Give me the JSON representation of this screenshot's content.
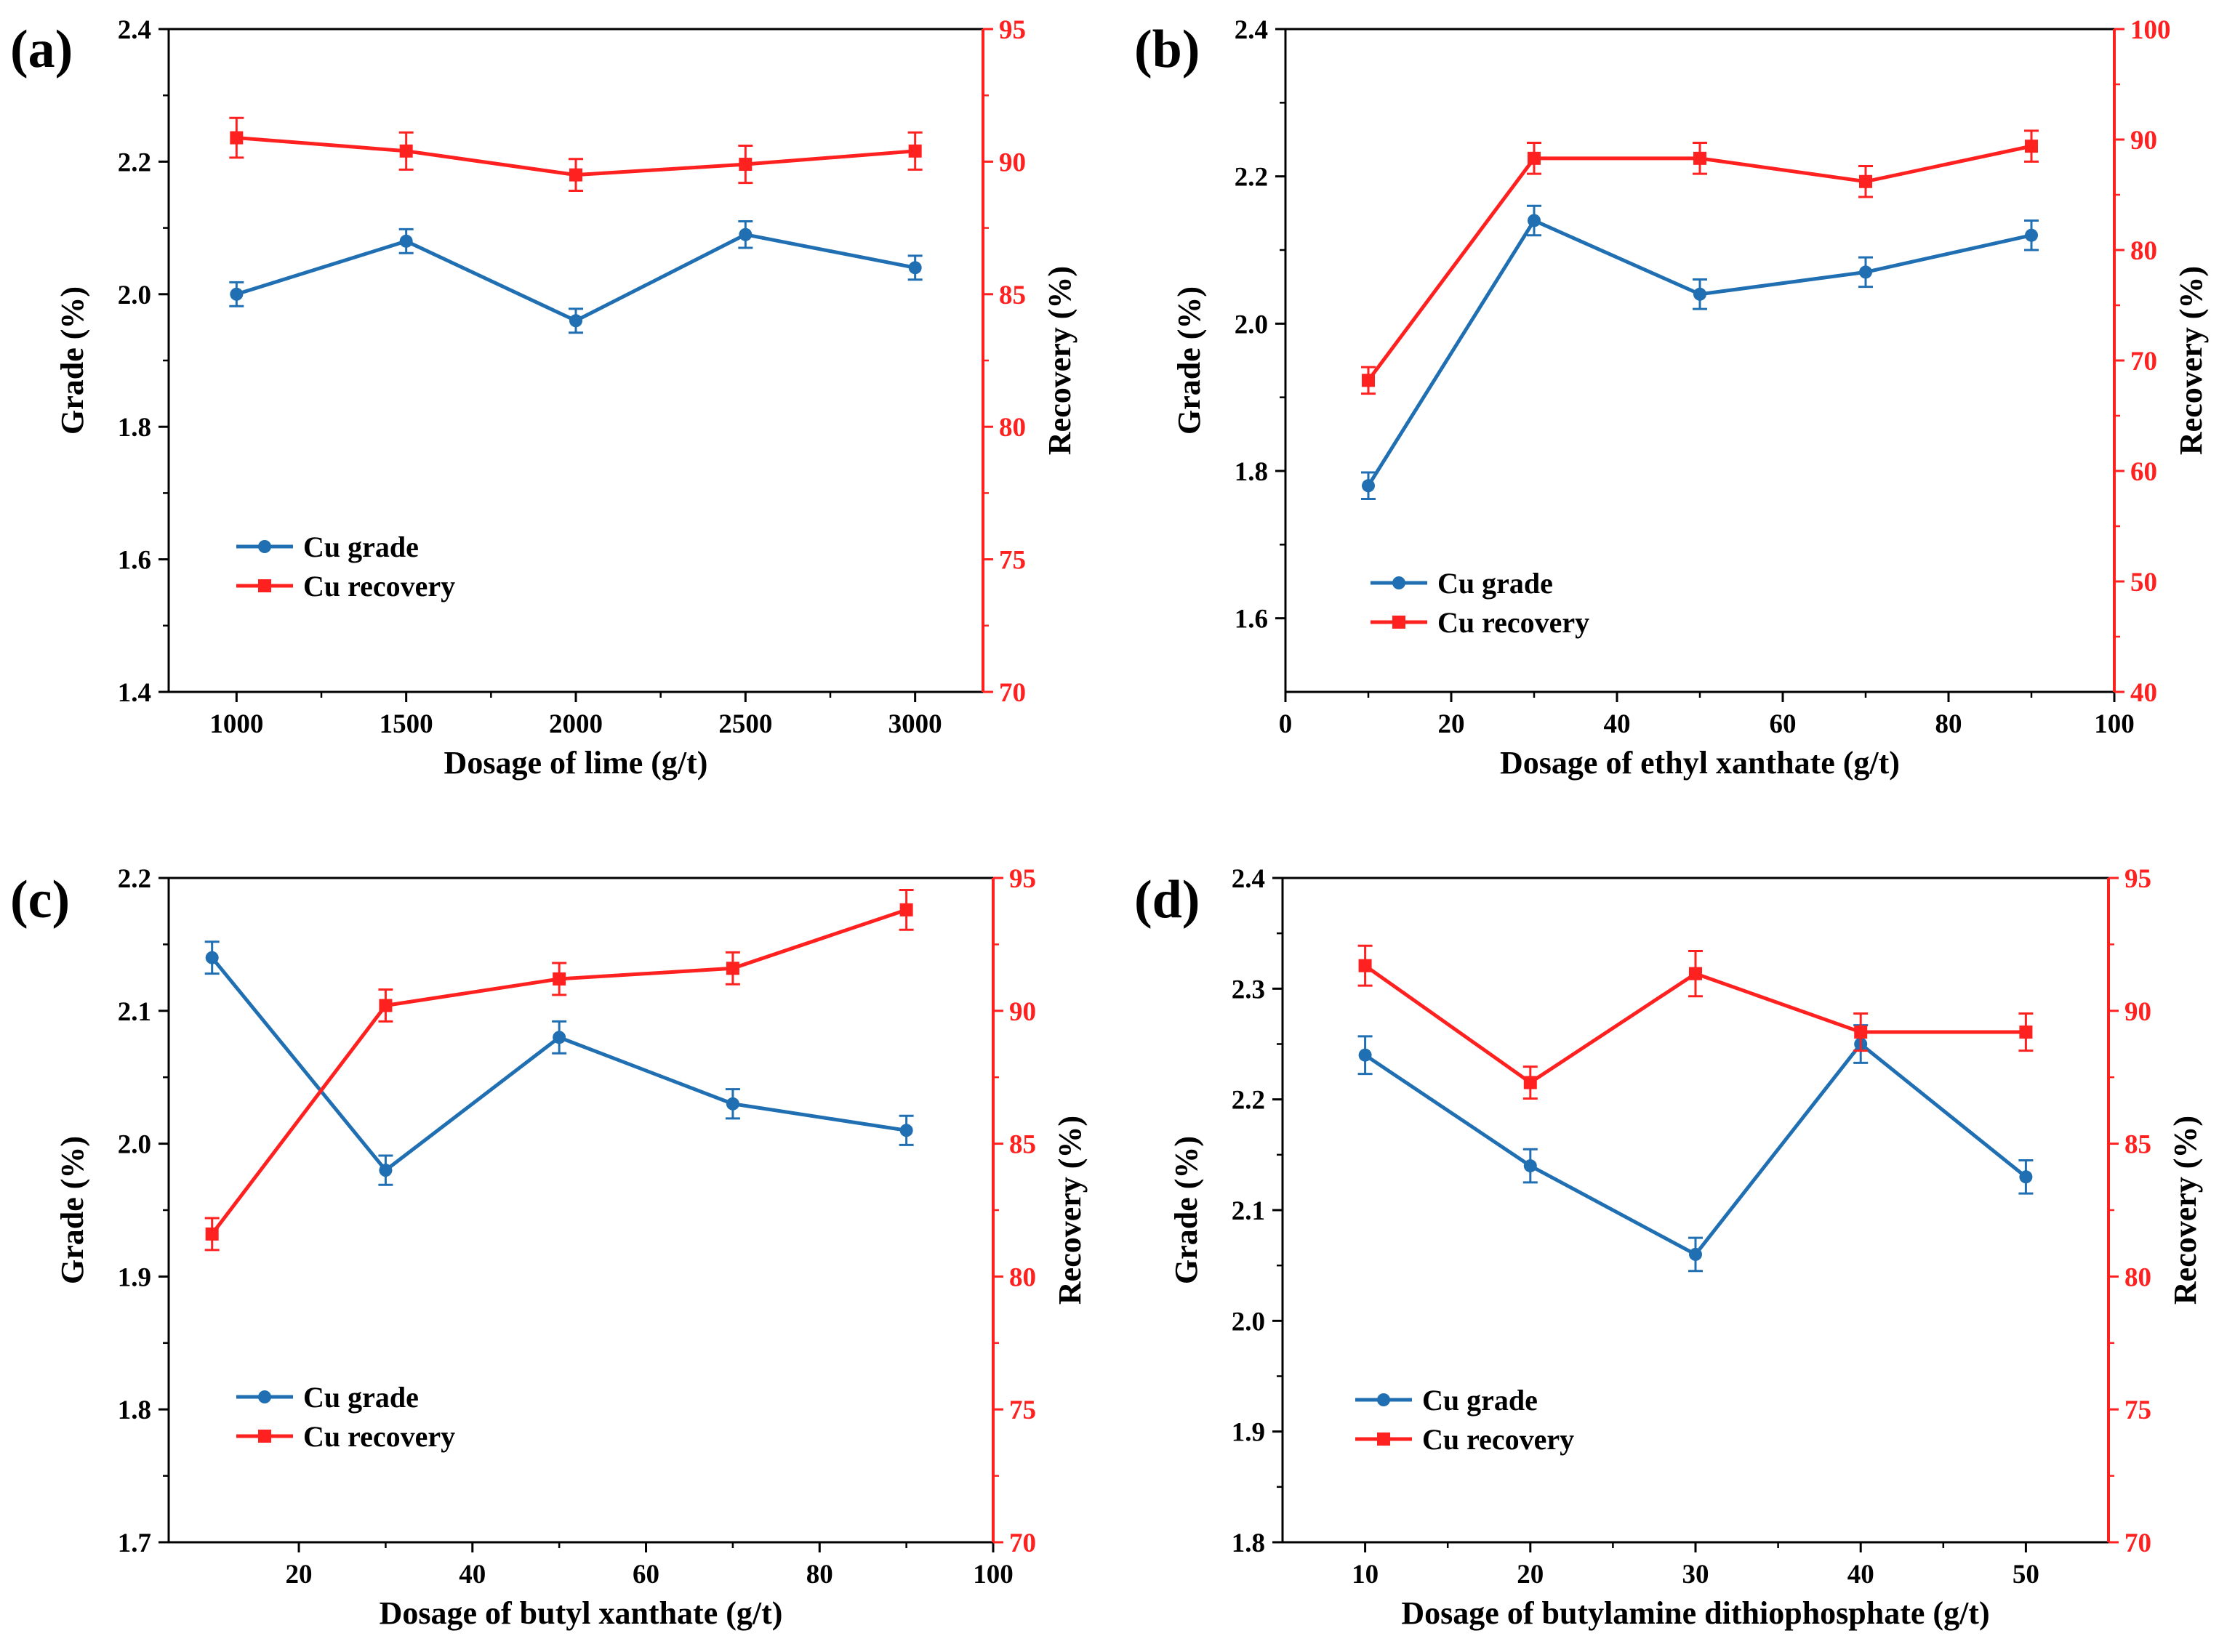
{
  "colors": {
    "grade": "#1f6fb2",
    "recovery": "#ff2020",
    "axis": "#000000"
  },
  "legend": {
    "grade_label": "Cu grade",
    "recovery_label": "Cu recovery"
  },
  "chart_data": [
    {
      "type": "line",
      "panel_label": "(a)",
      "xlabel": "Dosage of lime (g/t)",
      "ylabel_left": "Grade (%)",
      "ylabel_right": "Recovery (%)",
      "xlim": [
        800,
        3200
      ],
      "xticks": [
        1000,
        1500,
        2000,
        2500,
        3000
      ],
      "ylim_left": [
        1.4,
        2.4
      ],
      "yticks_left": [
        "1.4",
        "1.6",
        "1.8",
        "2.0",
        "2.2",
        "2.4"
      ],
      "ylim_right": [
        70,
        95
      ],
      "yticks_right": [
        "70",
        "75",
        "80",
        "85",
        "90",
        "95"
      ],
      "x": [
        1000,
        1500,
        2000,
        2500,
        3000
      ],
      "series": [
        {
          "name": "Cu grade",
          "axis": "left",
          "marker": "circle",
          "values": [
            2.0,
            2.08,
            1.96,
            2.09,
            2.04
          ],
          "errors": [
            0.018,
            0.018,
            0.018,
            0.02,
            0.018
          ]
        },
        {
          "name": "Cu recovery",
          "axis": "right",
          "marker": "square",
          "values": [
            90.9,
            90.4,
            89.5,
            89.9,
            90.4
          ],
          "errors": [
            0.75,
            0.7,
            0.6,
            0.7,
            0.7
          ]
        }
      ]
    },
    {
      "type": "line",
      "panel_label": "(b)",
      "xlabel": "Dosage of ethyl xanthate (g/t)",
      "ylabel_left": "Grade (%)",
      "ylabel_right": "Recovery (%)",
      "xlim": [
        0,
        100
      ],
      "xticks": [
        0,
        20,
        40,
        60,
        80,
        100
      ],
      "ylim_left": [
        1.5,
        2.4
      ],
      "yticks_left": [
        "1.6",
        "1.8",
        "2.0",
        "2.2",
        "2.4"
      ],
      "ylim_right": [
        40,
        100
      ],
      "yticks_right": [
        "40",
        "50",
        "60",
        "70",
        "80",
        "90",
        "100"
      ],
      "x": [
        10,
        30,
        50,
        70,
        90
      ],
      "series": [
        {
          "name": "Cu grade",
          "axis": "left",
          "marker": "circle",
          "values": [
            1.78,
            2.14,
            2.04,
            2.07,
            2.12
          ],
          "errors": [
            0.018,
            0.02,
            0.02,
            0.02,
            0.02
          ]
        },
        {
          "name": "Cu recovery",
          "axis": "right",
          "marker": "square",
          "values": [
            68.2,
            88.3,
            88.3,
            86.2,
            89.4
          ],
          "errors": [
            1.2,
            1.4,
            1.4,
            1.4,
            1.4
          ]
        }
      ]
    },
    {
      "type": "line",
      "panel_label": "(c)",
      "xlabel": "Dosage of butyl xanthate (g/t)",
      "ylabel_left": "Grade (%)",
      "ylabel_right": "Recovery (%)",
      "xlim": [
        5,
        100
      ],
      "xticks": [
        20,
        40,
        60,
        80,
        100
      ],
      "ylim_left": [
        1.7,
        2.2
      ],
      "yticks_left": [
        "1.7",
        "1.8",
        "1.9",
        "2.0",
        "2.1",
        "2.2"
      ],
      "ylim_right": [
        70,
        95
      ],
      "yticks_right": [
        "70",
        "75",
        "80",
        "85",
        "90",
        "95"
      ],
      "x": [
        10,
        30,
        50,
        70,
        90
      ],
      "series": [
        {
          "name": "Cu grade",
          "axis": "left",
          "marker": "circle",
          "values": [
            2.14,
            1.98,
            2.08,
            2.03,
            2.01
          ],
          "errors": [
            0.012,
            0.011,
            0.012,
            0.011,
            0.011
          ]
        },
        {
          "name": "Cu recovery",
          "axis": "right",
          "marker": "square",
          "values": [
            81.6,
            90.2,
            91.2,
            91.6,
            93.8
          ],
          "errors": [
            0.6,
            0.6,
            0.6,
            0.6,
            0.75
          ]
        }
      ]
    },
    {
      "type": "line",
      "panel_label": "(d)",
      "xlabel": "Dosage of butylamine dithiophosphate (g/t)",
      "ylabel_left": "Grade (%)",
      "ylabel_right": "Recovery (%)",
      "xlim": [
        5,
        55
      ],
      "xticks": [
        10,
        20,
        30,
        40,
        50
      ],
      "ylim_left": [
        1.8,
        2.4
      ],
      "yticks_left": [
        "1.8",
        "1.9",
        "2.0",
        "2.1",
        "2.2",
        "2.3",
        "2.4"
      ],
      "ylim_right": [
        70,
        95
      ],
      "yticks_right": [
        "70",
        "75",
        "80",
        "85",
        "90",
        "95"
      ],
      "x": [
        10,
        20,
        30,
        40,
        50
      ],
      "series": [
        {
          "name": "Cu grade",
          "axis": "left",
          "marker": "circle",
          "values": [
            2.24,
            2.14,
            2.06,
            2.25,
            2.13
          ],
          "errors": [
            0.017,
            0.015,
            0.015,
            0.017,
            0.015
          ]
        },
        {
          "name": "Cu recovery",
          "axis": "right",
          "marker": "square",
          "values": [
            91.7,
            87.3,
            91.4,
            89.2,
            89.2
          ],
          "errors": [
            0.75,
            0.6,
            0.85,
            0.7,
            0.7
          ]
        }
      ]
    }
  ]
}
